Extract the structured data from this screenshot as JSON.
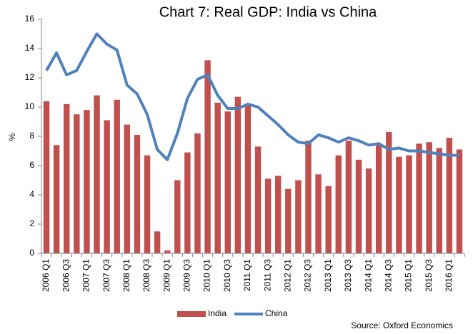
{
  "chart_data": {
    "type": "bar_line",
    "title": "Chart 7: Real GDP: India vs China",
    "y_label": "%",
    "source": "Source: Oxford Economics",
    "categories": [
      "2006 Q1",
      null,
      "2006 Q3",
      null,
      "2007 Q1",
      null,
      "2007 Q3",
      null,
      "2008 Q1",
      null,
      "2008 Q3",
      null,
      "2009 Q1",
      null,
      "2009 Q3",
      null,
      "2010 Q1",
      null,
      "2010 Q3",
      null,
      "2011 Q1",
      null,
      "2011 Q3",
      null,
      "2012 Q1",
      null,
      "2012 Q3",
      null,
      "2013 Q1",
      null,
      "2013 Q3",
      null,
      "2014 Q1",
      null,
      "2014 Q3",
      null,
      "2015 Q1",
      null,
      "2015 Q3",
      null,
      "2016 Q1",
      null
    ],
    "series": [
      {
        "name": "India",
        "kind": "bar",
        "color": "#c0504d",
        "values": [
          10.4,
          7.4,
          10.2,
          9.5,
          9.8,
          10.8,
          9.1,
          10.5,
          8.8,
          8.1,
          6.7,
          1.5,
          0.2,
          5.0,
          6.9,
          8.2,
          13.2,
          10.3,
          9.7,
          10.7,
          10.2,
          7.3,
          5.1,
          5.3,
          4.4,
          5.0,
          7.7,
          5.4,
          4.6,
          6.7,
          7.7,
          6.4,
          5.8,
          7.4,
          8.3,
          6.6,
          6.7,
          7.5,
          7.6,
          7.2,
          7.9,
          7.1
        ]
      },
      {
        "name": "China",
        "kind": "line",
        "color": "#4f81bd",
        "values": [
          12.5,
          13.7,
          12.2,
          12.5,
          13.8,
          15.0,
          14.3,
          13.9,
          11.5,
          10.9,
          9.5,
          7.1,
          6.4,
          8.2,
          10.6,
          11.9,
          12.2,
          10.8,
          9.9,
          9.9,
          10.2,
          10.0,
          9.4,
          8.8,
          8.1,
          7.6,
          7.5,
          8.1,
          7.9,
          7.6,
          7.9,
          7.7,
          7.4,
          7.5,
          7.1,
          7.2,
          7.0,
          7.0,
          6.9,
          6.8,
          6.7,
          6.7
        ]
      }
    ],
    "ylim": [
      0,
      16
    ],
    "yticks": [
      0,
      2,
      4,
      6,
      8,
      10,
      12,
      14,
      16
    ],
    "grid": false,
    "legend": "bottom"
  }
}
